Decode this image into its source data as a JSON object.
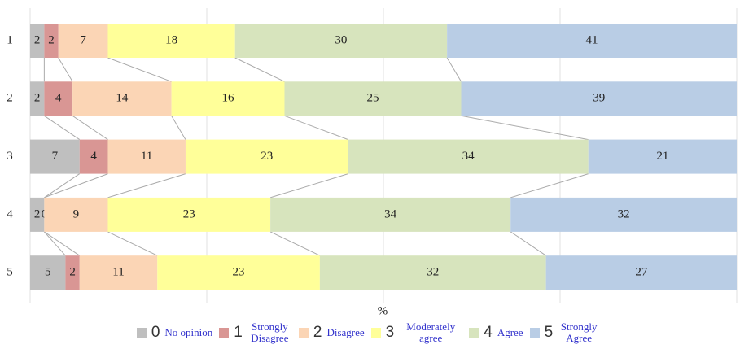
{
  "chart_data": {
    "type": "stacked-bar-horizontal",
    "categories": [
      "1",
      "2",
      "3",
      "4",
      "5"
    ],
    "x_label": "%",
    "xlim": [
      0,
      100
    ],
    "xticks": [
      0,
      25,
      50,
      75,
      100
    ],
    "grid": true,
    "series": [
      {
        "key": "0",
        "name": "No opinion",
        "color": "#bfbfbf",
        "values": [
          2,
          2,
          7,
          2,
          5
        ]
      },
      {
        "key": "1",
        "name": "Strongly Disagree",
        "color": "#d99694",
        "values": [
          2,
          4,
          4,
          0,
          2
        ]
      },
      {
        "key": "2",
        "name": "Disagree",
        "color": "#fbd5b5",
        "values": [
          7,
          14,
          11,
          9,
          11
        ]
      },
      {
        "key": "3",
        "name": "Moderately agree",
        "color": "#ffff99",
        "values": [
          18,
          16,
          23,
          23,
          23
        ]
      },
      {
        "key": "4",
        "name": "Agree",
        "color": "#d7e4bd",
        "values": [
          30,
          25,
          34,
          34,
          32
        ]
      },
      {
        "key": "5",
        "name": "Strongly Agree",
        "color": "#b9cde5",
        "values": [
          41,
          39,
          21,
          32,
          27
        ]
      }
    ]
  }
}
